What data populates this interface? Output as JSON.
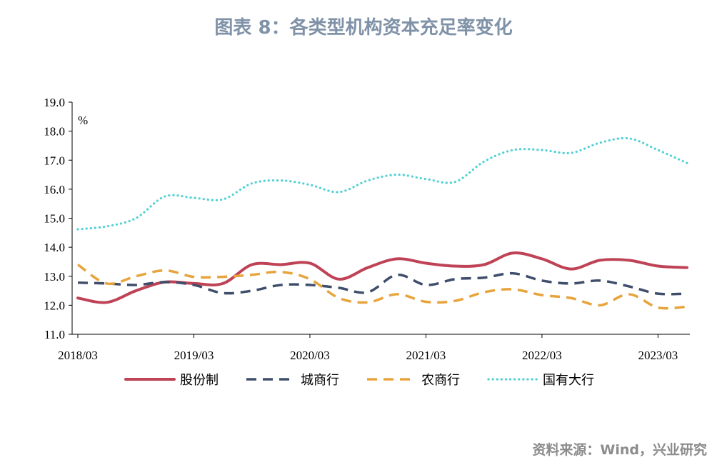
{
  "title": "图表 8：各类型机构资本充足率变化",
  "source": "资料来源：Wind，兴业研究",
  "chart_data": {
    "type": "line",
    "ylabel": "%",
    "ylim": [
      11.0,
      19.0
    ],
    "yticks": [
      "11.0",
      "12.0",
      "13.0",
      "14.0",
      "15.0",
      "16.0",
      "17.0",
      "18.0",
      "19.0"
    ],
    "xlim": [
      0,
      21
    ],
    "xtick_positions": [
      0,
      4,
      8,
      12,
      16,
      20
    ],
    "xtick_labels": [
      "2018/03",
      "2019/03",
      "2020/03",
      "2021/03",
      "2022/03",
      "2023/03"
    ],
    "grid": false,
    "legend_position": "bottom",
    "series": [
      {
        "name": "股份制",
        "color": "#bf4356",
        "style": "solid",
        "values": [
          12.25,
          12.1,
          12.5,
          12.8,
          12.75,
          12.75,
          13.4,
          13.4,
          13.45,
          12.9,
          13.3,
          13.6,
          13.45,
          13.35,
          13.4,
          13.8,
          13.6,
          13.25,
          13.55,
          13.55,
          13.35,
          13.3
        ]
      },
      {
        "name": "城商行",
        "color": "#3f4e6b",
        "style": "dashed",
        "values": [
          12.78,
          12.75,
          12.7,
          12.8,
          12.7,
          12.42,
          12.5,
          12.7,
          12.7,
          12.6,
          12.45,
          13.05,
          12.7,
          12.9,
          12.95,
          13.1,
          12.85,
          12.75,
          12.85,
          12.65,
          12.4,
          12.4
        ]
      },
      {
        "name": "农商行",
        "color": "#e8a43c",
        "style": "dashed",
        "values": [
          13.4,
          12.75,
          13.0,
          13.2,
          12.98,
          12.98,
          13.05,
          13.15,
          12.9,
          12.25,
          12.1,
          12.38,
          12.12,
          12.15,
          12.45,
          12.55,
          12.35,
          12.25,
          12.0,
          12.38,
          11.92,
          11.95
        ]
      },
      {
        "name": "国有大行",
        "color": "#4fd1d3",
        "style": "dotted",
        "values": [
          14.62,
          14.72,
          15.0,
          15.75,
          15.7,
          15.65,
          16.2,
          16.3,
          16.15,
          15.9,
          16.3,
          16.5,
          16.35,
          16.25,
          16.95,
          17.35,
          17.35,
          17.25,
          17.6,
          17.75,
          17.35,
          16.9
        ]
      }
    ]
  }
}
